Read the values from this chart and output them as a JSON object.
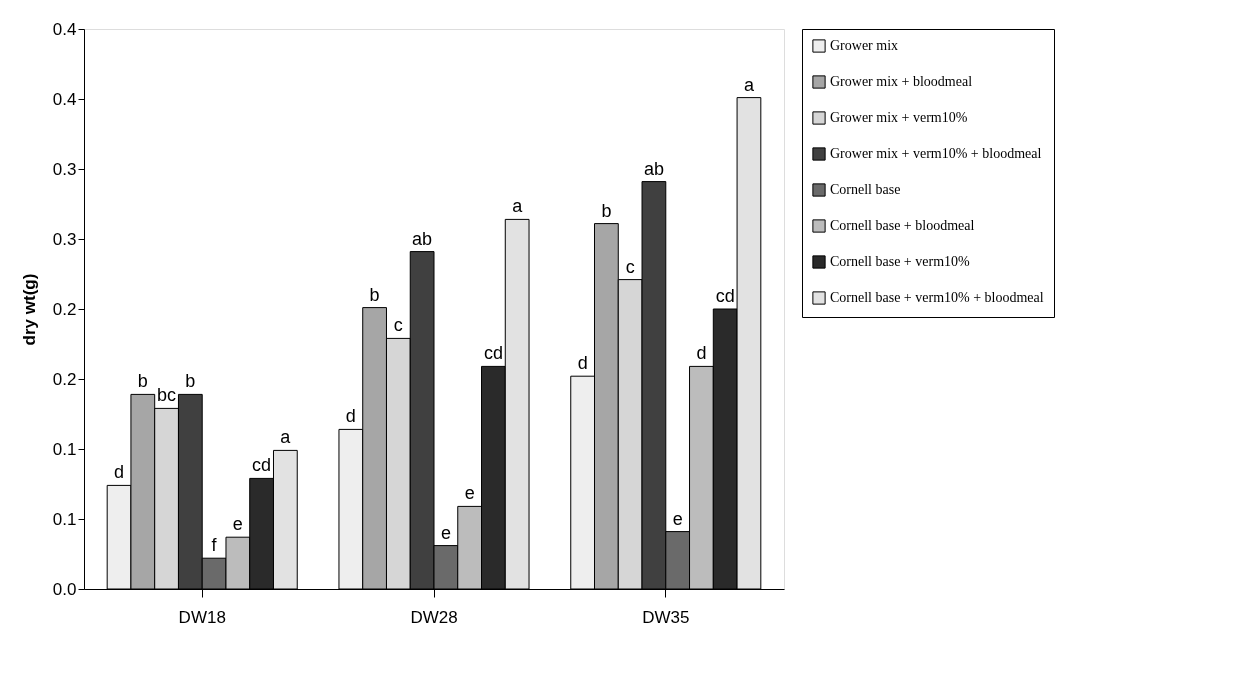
{
  "chart_data": {
    "type": "bar",
    "ylabel": "dry wt(g)",
    "categories": [
      "DW18",
      "DW28",
      "DW35"
    ],
    "ylim": [
      0,
      0.4
    ],
    "yticks": [
      {
        "value": 0,
        "label": "0.0"
      },
      {
        "value": 0.05,
        "label": "0.1"
      },
      {
        "value": 0.1,
        "label": "0.1"
      },
      {
        "value": 0.15,
        "label": "0.2"
      },
      {
        "value": 0.2,
        "label": "0.2"
      },
      {
        "value": 0.25,
        "label": "0.3"
      },
      {
        "value": 0.3,
        "label": "0.3"
      },
      {
        "value": 0.35,
        "label": "0.4"
      },
      {
        "value": 0.4,
        "label": "0.4"
      }
    ],
    "grid": false,
    "legend": "right",
    "series": [
      {
        "name": "Grower mix",
        "color": "#eeeeee",
        "values": [
          0.074,
          0.114,
          0.152
        ],
        "value_labels": [
          "d",
          "d",
          "d"
        ]
      },
      {
        "name": "Grower mix + bloodmeal",
        "color": "#a6a6a6",
        "values": [
          0.139,
          0.201,
          0.261
        ],
        "value_labels": [
          "b",
          "b",
          "b"
        ]
      },
      {
        "name": "Grower mix + verm10%",
        "color": "#d6d6d6",
        "values": [
          0.129,
          0.179,
          0.221
        ],
        "value_labels": [
          "bc",
          "c",
          "c"
        ]
      },
      {
        "name": "Grower mix + verm10% + bloodmeal",
        "color": "#404040",
        "values": [
          0.139,
          0.241,
          0.291
        ],
        "value_labels": [
          "b",
          "ab",
          "ab"
        ]
      },
      {
        "name": "Cornell base",
        "color": "#6a6a6a",
        "values": [
          0.022,
          0.031,
          0.041
        ],
        "value_labels": [
          "f",
          "e",
          "e"
        ]
      },
      {
        "name": "Cornell base + bloodmeal",
        "color": "#bcbcbc",
        "values": [
          0.037,
          0.059,
          0.159
        ],
        "value_labels": [
          "e",
          "e",
          "d"
        ]
      },
      {
        "name": "Cornell base + verm10%",
        "color": "#2a2a2a",
        "values": [
          0.079,
          0.159,
          0.2
        ],
        "value_labels": [
          "cd",
          "cd",
          "cd"
        ]
      },
      {
        "name": "Cornell base + verm10% + bloodmeal",
        "color": "#e2e2e2",
        "values": [
          0.099,
          0.264,
          0.351
        ],
        "value_labels": [
          "a",
          "a",
          "a"
        ]
      }
    ]
  }
}
